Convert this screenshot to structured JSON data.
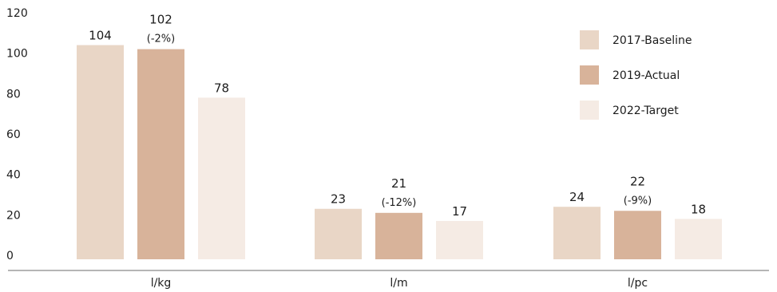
{
  "chart_data": {
    "type": "bar",
    "title": "",
    "xlabel": "",
    "ylabel": "",
    "ylim": [
      0,
      120
    ],
    "yticks": [
      0,
      20,
      40,
      60,
      80,
      100,
      120
    ],
    "categories": [
      "l/kg",
      "l/m",
      "l/pc"
    ],
    "grid": false,
    "legend_position": "top-right",
    "series": [
      {
        "name": "2017-Baseline",
        "color": "#e9d6c6",
        "values": [
          104,
          23,
          24
        ],
        "annotations": [
          "",
          "",
          ""
        ]
      },
      {
        "name": "2019-Actual",
        "color": "#d8b39a",
        "values": [
          102,
          21,
          22
        ],
        "annotations": [
          "(-2%)",
          "(-12%)",
          "(-9%)"
        ]
      },
      {
        "name": "2022-Target",
        "color": "#f5ebe4",
        "values": [
          78,
          17,
          18
        ],
        "annotations": [
          "",
          "",
          ""
        ]
      }
    ]
  }
}
